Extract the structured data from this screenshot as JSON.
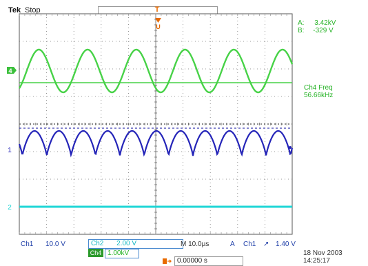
{
  "header": {
    "brand": "Tek",
    "status": "Stop"
  },
  "trigger_marker": "T",
  "cursor_readout": {
    "a_label": "A:",
    "a_value": "3.42kV",
    "b_label": "B:",
    "b_value": "-329 V"
  },
  "measurement": {
    "label": "Ch4 Freq",
    "value": "56.66kHz"
  },
  "channel_markers": {
    "ch4": "4",
    "ch1": "1",
    "ch2": "2"
  },
  "bottom_bar": {
    "ch1_label": "Ch1",
    "ch1_scale": "10.0 V",
    "ch2_label": "Ch2",
    "ch2_scale": "2.00 V",
    "math_label": "Ch4",
    "math_scale": "1.00kV",
    "timebase": "M 10.0µs",
    "trigger_mode": "A",
    "trigger_source": "Ch1",
    "trigger_slope": "↗",
    "trigger_level": "1.40 V",
    "horizontal_position": "0.00000 s",
    "date": "18 Nov 2003",
    "time": "14:25:17"
  },
  "colors": {
    "ch4": "#47d247",
    "ch1": "#2424b8",
    "ch2": "#1ed6d6",
    "trigger": "#e86a00",
    "grid": "#7a7a7a"
  },
  "waveforms": {
    "ch4": {
      "cycles": 5.6,
      "amplitude": 0.55,
      "shape": "sine"
    },
    "ch1": {
      "cycles": 11.2,
      "amplitude": 0.5,
      "shape": "rectified-sine"
    },
    "ch2": {
      "shape": "flat"
    }
  }
}
